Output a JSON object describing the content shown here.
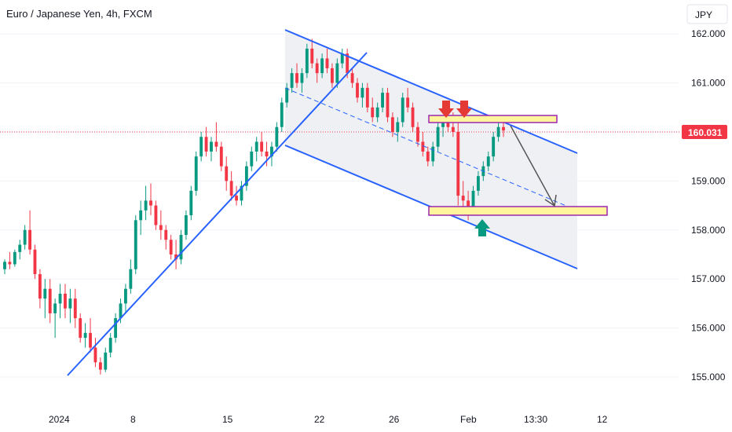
{
  "chart_data": {
    "type": "candlestick",
    "title": "Euro / Japanese Yen, 4h, FXCM",
    "currency": "JPY",
    "current_price": "160.031",
    "current_price_value": 160.031,
    "y_ticks": [
      "155.000",
      "156.000",
      "157.000",
      "158.000",
      "159.000",
      "160.000",
      "161.000",
      "162.000"
    ],
    "y_tick_values": [
      155,
      156,
      157,
      158,
      159,
      160,
      161,
      162
    ],
    "ylim": [
      154.25,
      162.75
    ],
    "x_ticks": [
      "2024",
      "8",
      "15",
      "22",
      "26",
      "Feb",
      "13:30",
      "12"
    ],
    "colors": {
      "up": "#089981",
      "down": "#f23645",
      "trendline": "#2962ff",
      "zone_fill": "#fff59d",
      "zone_border": "#9c27b0",
      "arrow_down": "#e53935",
      "arrow_up": "#089981",
      "price_badge": "#f23645",
      "channel_fill": "#eef0f3"
    },
    "candles_ohlc": [
      [
        157.2,
        157.4,
        157.1,
        157.35
      ],
      [
        157.35,
        157.55,
        157.2,
        157.3
      ],
      [
        157.3,
        157.6,
        157.25,
        157.55
      ],
      [
        157.55,
        157.8,
        157.4,
        157.7
      ],
      [
        157.7,
        158.1,
        157.6,
        158.0
      ],
      [
        158.0,
        158.4,
        157.5,
        157.6
      ],
      [
        157.6,
        157.7,
        157.0,
        157.1
      ],
      [
        157.1,
        157.2,
        156.4,
        156.6
      ],
      [
        156.6,
        157.0,
        156.2,
        156.8
      ],
      [
        156.8,
        157.0,
        156.1,
        156.3
      ],
      [
        156.3,
        156.6,
        155.8,
        156.5
      ],
      [
        156.5,
        156.9,
        156.2,
        156.7
      ],
      [
        156.7,
        156.9,
        156.2,
        156.4
      ],
      [
        156.4,
        156.8,
        156.1,
        156.6
      ],
      [
        156.6,
        156.8,
        156.0,
        156.2
      ],
      [
        156.2,
        156.3,
        155.7,
        155.8
      ],
      [
        155.8,
        156.1,
        155.6,
        155.9
      ],
      [
        155.9,
        156.2,
        155.5,
        155.6
      ],
      [
        155.6,
        155.8,
        155.2,
        155.3
      ],
      [
        155.3,
        155.4,
        155.05,
        155.15
      ],
      [
        155.15,
        155.6,
        155.1,
        155.5
      ],
      [
        155.5,
        155.9,
        155.4,
        155.8
      ],
      [
        155.8,
        156.3,
        155.7,
        156.2
      ],
      [
        156.2,
        156.6,
        156.1,
        156.5
      ],
      [
        156.5,
        156.9,
        156.3,
        156.8
      ],
      [
        156.8,
        157.4,
        156.7,
        157.2
      ],
      [
        157.2,
        158.3,
        157.1,
        158.2
      ],
      [
        158.2,
        158.6,
        157.9,
        158.4
      ],
      [
        158.4,
        158.9,
        158.2,
        158.6
      ],
      [
        158.6,
        158.95,
        158.3,
        158.5
      ],
      [
        158.5,
        158.6,
        158.0,
        158.1
      ],
      [
        158.1,
        158.4,
        157.8,
        158.0
      ],
      [
        158.0,
        158.1,
        157.6,
        157.8
      ],
      [
        157.8,
        157.9,
        157.4,
        157.5
      ],
      [
        157.5,
        157.8,
        157.2,
        157.4
      ],
      [
        157.4,
        158.0,
        157.3,
        157.9
      ],
      [
        157.9,
        158.4,
        157.8,
        158.3
      ],
      [
        158.3,
        158.9,
        158.2,
        158.8
      ],
      [
        158.8,
        159.6,
        158.7,
        159.5
      ],
      [
        159.5,
        160.0,
        159.4,
        159.9
      ],
      [
        159.9,
        160.1,
        159.5,
        159.6
      ],
      [
        159.6,
        159.9,
        159.4,
        159.8
      ],
      [
        159.8,
        160.2,
        159.6,
        159.7
      ],
      [
        159.7,
        159.8,
        159.2,
        159.3
      ],
      [
        159.3,
        159.5,
        158.8,
        159.0
      ],
      [
        159.0,
        159.2,
        158.6,
        158.7
      ],
      [
        158.7,
        158.9,
        158.5,
        158.6
      ],
      [
        158.6,
        159.0,
        158.5,
        158.9
      ],
      [
        158.9,
        159.4,
        158.8,
        159.3
      ],
      [
        159.3,
        159.7,
        159.2,
        159.6
      ],
      [
        159.6,
        159.9,
        159.4,
        159.8
      ],
      [
        159.8,
        160.0,
        159.5,
        159.6
      ],
      [
        159.6,
        159.8,
        159.3,
        159.5
      ],
      [
        159.5,
        159.8,
        159.3,
        159.7
      ],
      [
        159.7,
        160.2,
        159.6,
        160.1
      ],
      [
        160.1,
        160.7,
        160.0,
        160.6
      ],
      [
        160.6,
        161.0,
        160.5,
        160.9
      ],
      [
        160.9,
        161.3,
        160.8,
        161.2
      ],
      [
        161.2,
        161.4,
        160.9,
        161.0
      ],
      [
        161.0,
        161.3,
        160.8,
        161.2
      ],
      [
        161.2,
        161.8,
        161.1,
        161.7
      ],
      [
        161.7,
        161.9,
        161.3,
        161.4
      ],
      [
        161.4,
        161.5,
        161.0,
        161.2
      ],
      [
        161.2,
        161.6,
        161.1,
        161.5
      ],
      [
        161.5,
        161.7,
        161.2,
        161.3
      ],
      [
        161.3,
        161.4,
        160.9,
        161.0
      ],
      [
        161.0,
        161.5,
        160.9,
        161.4
      ],
      [
        161.4,
        161.7,
        161.3,
        161.6
      ],
      [
        161.6,
        161.7,
        161.1,
        161.2
      ],
      [
        161.2,
        161.3,
        160.9,
        161.0
      ],
      [
        161.0,
        161.1,
        160.6,
        160.7
      ],
      [
        160.7,
        161.0,
        160.5,
        160.9
      ],
      [
        160.9,
        161.0,
        160.4,
        160.5
      ],
      [
        160.5,
        160.7,
        160.2,
        160.3
      ],
      [
        160.3,
        160.6,
        160.2,
        160.5
      ],
      [
        160.5,
        160.9,
        160.4,
        160.8
      ],
      [
        160.8,
        160.9,
        160.2,
        160.3
      ],
      [
        160.3,
        160.4,
        159.9,
        160.0
      ],
      [
        160.0,
        160.3,
        159.8,
        160.2
      ],
      [
        160.2,
        160.8,
        160.1,
        160.7
      ],
      [
        160.7,
        160.9,
        160.4,
        160.5
      ],
      [
        160.5,
        160.6,
        160.0,
        160.1
      ],
      [
        160.1,
        160.2,
        159.7,
        159.8
      ],
      [
        159.8,
        160.0,
        159.5,
        159.6
      ],
      [
        159.6,
        159.7,
        159.3,
        159.4
      ],
      [
        159.4,
        159.8,
        159.3,
        159.7
      ],
      [
        159.7,
        160.2,
        159.6,
        160.1
      ],
      [
        160.1,
        160.3,
        159.9,
        160.2
      ],
      [
        160.2,
        160.5,
        160.0,
        160.1
      ],
      [
        160.1,
        160.4,
        159.9,
        160.0
      ],
      [
        160.0,
        160.2,
        158.5,
        158.7
      ],
      [
        158.7,
        159.0,
        158.4,
        158.6
      ],
      [
        158.6,
        158.8,
        158.2,
        158.4
      ],
      [
        158.4,
        158.9,
        158.3,
        158.8
      ],
      [
        158.8,
        159.2,
        158.7,
        159.1
      ],
      [
        159.1,
        159.4,
        159.0,
        159.3
      ],
      [
        159.3,
        159.6,
        159.2,
        159.5
      ],
      [
        159.5,
        160.0,
        159.4,
        159.9
      ],
      [
        159.9,
        160.2,
        159.8,
        160.1
      ],
      [
        160.1,
        160.3,
        159.9,
        160.03
      ]
    ],
    "lines": [
      {
        "from_x": 86,
        "from_y": 155.05,
        "to_x": 467,
        "to_y": 161.65,
        "label": ""
      },
      {
        "from_x": 363,
        "from_y": 162.05,
        "to_x": 735,
        "to_y": 159.55,
        "label": ""
      },
      {
        "from_x": 363,
        "from_y": 159.75,
        "to_x": 735,
        "to_y": 157.25,
        "label": ""
      }
    ],
    "zones": [
      {
        "x1": 546,
        "x2": 709,
        "y_top": 160.35,
        "y_bottom": 160.18
      },
      {
        "x1": 546,
        "x2": 773,
        "y_top": 158.55,
        "y_bottom": 158.35
      }
    ]
  }
}
